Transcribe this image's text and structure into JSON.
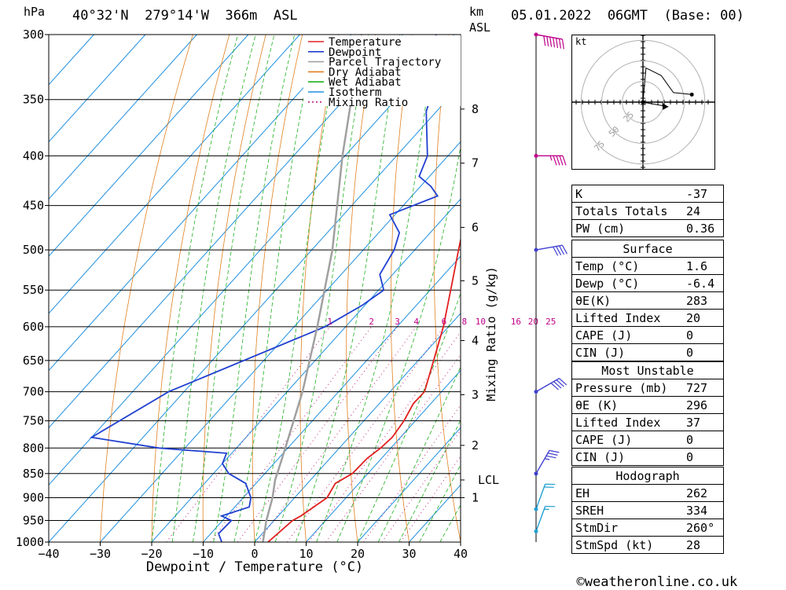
{
  "header": {
    "pressure_unit": "hPa",
    "location": "40°32'N  279°14'W  366m  ASL",
    "height_unit": "km",
    "height_ref": "ASL",
    "datetime": "05.01.2022  06GMT  (Base: 00)"
  },
  "chart_data": {
    "type": "line",
    "chart_kind": "skew-t log-p",
    "xlabel": "Dewpoint / Temperature (°C)",
    "ylabel": "",
    "xlim": [
      -40,
      40
    ],
    "ylim": [
      1000,
      300
    ],
    "y_scale": "log",
    "x_ticks": [
      "−40",
      "−30",
      "−20",
      "−10",
      "0",
      "10",
      "20",
      "30",
      "40"
    ],
    "y_ticks": [
      "300",
      "350",
      "400",
      "450",
      "500",
      "550",
      "600",
      "650",
      "700",
      "750",
      "800",
      "850",
      "900",
      "950",
      "1000"
    ],
    "height_ticks": [
      {
        "label": "8",
        "p": 358
      },
      {
        "label": "7",
        "p": 407
      },
      {
        "label": "6",
        "p": 474
      },
      {
        "label": "5",
        "p": 538
      },
      {
        "label": "4",
        "p": 620
      },
      {
        "label": "3",
        "p": 705
      },
      {
        "label": "2",
        "p": 795
      },
      {
        "label": "1",
        "p": 900
      }
    ],
    "lcl_label": "LCL",
    "lcl_pressure": 863,
    "mixing_ratio_axis_label": "Mixing Ratio (g/kg)",
    "mixing_ratio_labels": [
      "1",
      "2",
      "3",
      "4",
      "6",
      "8",
      "10",
      "16",
      "20",
      "25"
    ],
    "legend": {
      "position": "top-right",
      "entries": [
        {
          "name": "Temperature",
          "color": "#e02020",
          "style": "solid"
        },
        {
          "name": "Dewpoint",
          "color": "#2040d0",
          "style": "solid"
        },
        {
          "name": "Parcel Trajectory",
          "color": "#a0a0a0",
          "style": "solid"
        },
        {
          "name": "Dry Adiabat",
          "color": "#e08020",
          "style": "solid"
        },
        {
          "name": "Wet Adiabat",
          "color": "#20b020",
          "style": "solid"
        },
        {
          "name": "Isotherm",
          "color": "#2090e0",
          "style": "solid"
        },
        {
          "name": "Mixing Ratio",
          "color": "#c02080",
          "style": "dotted"
        }
      ]
    },
    "series": [
      {
        "name": "Temperature",
        "points": [
          [
            1000,
            2.6
          ],
          [
            950,
            3.6
          ],
          [
            940,
            4.4
          ],
          [
            900,
            6.3
          ],
          [
            870,
            5.4
          ],
          [
            850,
            7.0
          ],
          [
            820,
            7.2
          ],
          [
            800,
            8.0
          ],
          [
            780,
            8.4
          ],
          [
            750,
            7.8
          ],
          [
            720,
            6.6
          ],
          [
            700,
            6.7
          ],
          [
            650,
            3.0
          ],
          [
            600,
            -1.0
          ],
          [
            550,
            -6.0
          ],
          [
            500,
            -11.5
          ],
          [
            470,
            -15.0
          ],
          [
            450,
            -15.8
          ],
          [
            425,
            -18.0
          ],
          [
            400,
            -21.8
          ],
          [
            350,
            -31.0
          ],
          [
            320,
            -35.5
          ],
          [
            300,
            -39.5
          ]
        ]
      },
      {
        "name": "Dewpoint",
        "points": [
          [
            1000,
            -6.4
          ],
          [
            980,
            -8.5
          ],
          [
            950,
            -8.3
          ],
          [
            940,
            -11.0
          ],
          [
            920,
            -7.2
          ],
          [
            900,
            -8.5
          ],
          [
            870,
            -12.0
          ],
          [
            850,
            -17.0
          ],
          [
            830,
            -20.0
          ],
          [
            810,
            -21.0
          ],
          [
            800,
            -35.0
          ],
          [
            780,
            -50.0
          ],
          [
            700,
            -43.0
          ],
          [
            600,
            -24.0
          ],
          [
            570,
            -20.5
          ],
          [
            550,
            -19.0
          ],
          [
            530,
            -22.5
          ],
          [
            500,
            -24.0
          ],
          [
            480,
            -26.0
          ],
          [
            460,
            -31.0
          ],
          [
            440,
            -25.0
          ],
          [
            430,
            -28.0
          ],
          [
            420,
            -32.0
          ],
          [
            400,
            -34.0
          ],
          [
            360,
            -42.0
          ],
          [
            345,
            -44.0
          ],
          [
            330,
            -55.0
          ],
          [
            310,
            -52.0
          ],
          [
            300,
            -53.5
          ]
        ]
      },
      {
        "name": "Parcel Trajectory",
        "points": [
          [
            1000,
            1.6
          ],
          [
            950,
            -1.5
          ],
          [
            900,
            -4.3
          ],
          [
            863,
            -6.9
          ],
          [
            850,
            -7.6
          ],
          [
            800,
            -10.5
          ],
          [
            700,
            -17.0
          ],
          [
            600,
            -25.5
          ],
          [
            500,
            -36.0
          ],
          [
            400,
            -50.5
          ],
          [
            300,
            -68.0
          ]
        ]
      }
    ]
  },
  "winds": {
    "label": "wind profile",
    "levels": [
      {
        "p": 300,
        "dir": 280,
        "spd": 70,
        "color": "#c0008a"
      },
      {
        "p": 400,
        "dir": 270,
        "spd": 45,
        "color": "#c0008a"
      },
      {
        "p": 500,
        "dir": 260,
        "spd": 40,
        "color": "#4040d0"
      },
      {
        "p": 700,
        "dir": 240,
        "spd": 40,
        "color": "#4040d0"
      },
      {
        "p": 850,
        "dir": 210,
        "spd": 35,
        "color": "#4040d0"
      },
      {
        "p": 925,
        "dir": 200,
        "spd": 20,
        "color": "#20a0d0"
      },
      {
        "p": 975,
        "dir": 200,
        "spd": 15,
        "color": "#20a0d0"
      }
    ]
  },
  "hodograph": {
    "unit_label": "kt",
    "ring_labels": [
      "25",
      "50",
      "75"
    ],
    "trace_points": [
      [
        0,
        0
      ],
      [
        2,
        18
      ],
      [
        12,
        14
      ],
      [
        20,
        5
      ],
      [
        32,
        4
      ]
    ],
    "storm_motion_arrow": [
      [
        0,
        0
      ],
      [
        22,
        -4
      ]
    ]
  },
  "indices": [
    {
      "label": "K",
      "value": "-37"
    },
    {
      "label": "Totals Totals",
      "value": "24"
    },
    {
      "label": "PW (cm)",
      "value": "0.36"
    }
  ],
  "surface": {
    "title": "Surface",
    "rows": [
      {
        "label": "Temp (°C)",
        "value": "1.6"
      },
      {
        "label": "Dewp (°C)",
        "value": "-6.4"
      },
      {
        "label": "θE(K)",
        "value": "283"
      },
      {
        "label": "Lifted Index",
        "value": "20"
      },
      {
        "label": "CAPE (J)",
        "value": "0"
      },
      {
        "label": "CIN (J)",
        "value": "0"
      }
    ]
  },
  "most_unstable": {
    "title": "Most Unstable",
    "rows": [
      {
        "label": "Pressure (mb)",
        "value": "727"
      },
      {
        "label": "θE (K)",
        "value": "296"
      },
      {
        "label": "Lifted Index",
        "value": "37"
      },
      {
        "label": "CAPE (J)",
        "value": "0"
      },
      {
        "label": "CIN (J)",
        "value": "0"
      }
    ]
  },
  "hodograph_table": {
    "title": "Hodograph",
    "rows": [
      {
        "label": "EH",
        "value": "262"
      },
      {
        "label": "SREH",
        "value": "334"
      },
      {
        "label": "StmDir",
        "value": "260°"
      },
      {
        "label": "StmSpd (kt)",
        "value": "28"
      }
    ]
  },
  "footer": {
    "copyright_symbol": "©",
    "site": "weatheronline.co.uk"
  }
}
